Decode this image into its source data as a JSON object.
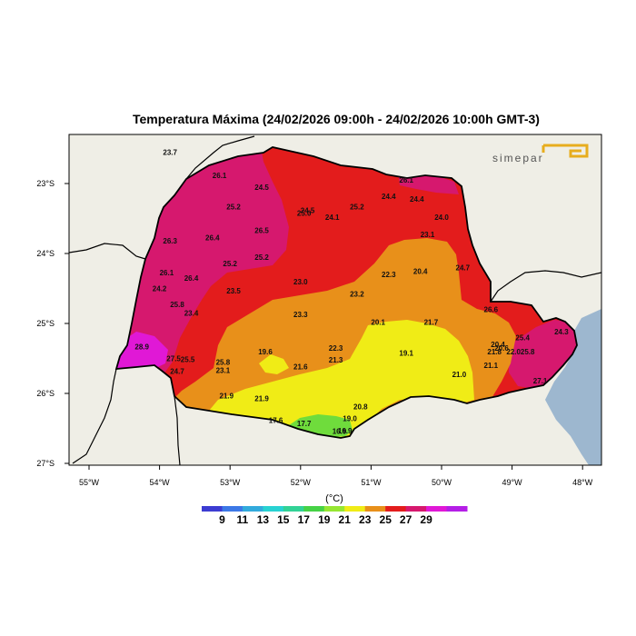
{
  "title": "Temperatura Máxima (24/02/2026 09:00h - 24/02/2026 10:00h GMT-3)",
  "logo": {
    "text": "simepar"
  },
  "colors": {
    "land": "#efeee6",
    "ocean": "#9db7cf",
    "level_21": "#f0ec16",
    "level_23": "#e8901a",
    "level_25": "#e31c1c",
    "level_27": "#d6186e",
    "level_29": "#e018d6",
    "level_19": "#6fdc3c"
  },
  "axes": {
    "x_ticks": [
      "55°W",
      "54°W",
      "53°W",
      "52°W",
      "51°W",
      "50°W",
      "49°W",
      "48°W"
    ],
    "y_ticks": [
      "23°S",
      "24°S",
      "25°S",
      "26°S",
      "27°S"
    ]
  },
  "legend": {
    "unit": "(°C)",
    "labels": [
      "9",
      "11",
      "13",
      "15",
      "17",
      "19",
      "21",
      "23",
      "25",
      "27",
      "29"
    ],
    "colors": [
      "#3c3cd2",
      "#3c78e6",
      "#32aadc",
      "#28d2d2",
      "#32d296",
      "#46d246",
      "#96e632",
      "#f0ec16",
      "#e8901a",
      "#e31c1c",
      "#d6186e",
      "#e018d6",
      "#b41ee6"
    ]
  },
  "stations": [
    {
      "v": "23.7",
      "x": -53.85,
      "y": -22.55
    },
    {
      "v": "26.1",
      "x": -53.15,
      "y": -22.88
    },
    {
      "v": "24.5",
      "x": -52.55,
      "y": -23.05
    },
    {
      "v": "25.2",
      "x": -52.95,
      "y": -23.33
    },
    {
      "v": "24.5",
      "x": -51.9,
      "y": -23.38
    },
    {
      "v": "25.0",
      "x": -51.95,
      "y": -23.42
    },
    {
      "v": "24.1",
      "x": -51.55,
      "y": -23.48
    },
    {
      "v": "25.2",
      "x": -51.2,
      "y": -23.33
    },
    {
      "v": "24.4",
      "x": -50.75,
      "y": -23.18
    },
    {
      "v": "26.1",
      "x": -50.5,
      "y": -22.95
    },
    {
      "v": "24.4",
      "x": -50.35,
      "y": -23.22
    },
    {
      "v": "24.0",
      "x": -50.0,
      "y": -23.48
    },
    {
      "v": "26.3",
      "x": -53.85,
      "y": -23.82
    },
    {
      "v": "26.4",
      "x": -53.25,
      "y": -23.77
    },
    {
      "v": "26.5",
      "x": -52.55,
      "y": -23.67
    },
    {
      "v": "23.1",
      "x": -50.2,
      "y": -23.73
    },
    {
      "v": "25.2",
      "x": -52.55,
      "y": -24.05
    },
    {
      "v": "25.2",
      "x": -53.0,
      "y": -24.14
    },
    {
      "v": "26.1",
      "x": -53.9,
      "y": -24.27
    },
    {
      "v": "26.4",
      "x": -53.55,
      "y": -24.35
    },
    {
      "v": "22.3",
      "x": -50.75,
      "y": -24.3
    },
    {
      "v": "20.4",
      "x": -50.3,
      "y": -24.25
    },
    {
      "v": "24.7",
      "x": -49.7,
      "y": -24.2
    },
    {
      "v": "24.2",
      "x": -54.0,
      "y": -24.5
    },
    {
      "v": "23.5",
      "x": -52.95,
      "y": -24.53
    },
    {
      "v": "23.0",
      "x": -52.0,
      "y": -24.4
    },
    {
      "v": "23.2",
      "x": -51.2,
      "y": -24.58
    },
    {
      "v": "25.8",
      "x": -53.75,
      "y": -24.73
    },
    {
      "v": "23.4",
      "x": -53.55,
      "y": -24.85
    },
    {
      "v": "23.3",
      "x": -52.0,
      "y": -24.87
    },
    {
      "v": "26.6",
      "x": -49.3,
      "y": -24.8
    },
    {
      "v": "20.1",
      "x": -50.9,
      "y": -24.98
    },
    {
      "v": "21.7",
      "x": -50.15,
      "y": -24.98
    },
    {
      "v": "28.9",
      "x": -54.25,
      "y": -25.33
    },
    {
      "v": "27.5",
      "x": -53.8,
      "y": -25.5
    },
    {
      "v": "25.5",
      "x": -53.6,
      "y": -25.51
    },
    {
      "v": "25.8",
      "x": -53.1,
      "y": -25.55
    },
    {
      "v": "19.6",
      "x": -52.5,
      "y": -25.4
    },
    {
      "v": "22.3",
      "x": -51.5,
      "y": -25.35
    },
    {
      "v": "21.3",
      "x": -51.5,
      "y": -25.52
    },
    {
      "v": "19.1",
      "x": -50.5,
      "y": -25.42
    },
    {
      "v": "20.4",
      "x": -49.2,
      "y": -25.3
    },
    {
      "v": "21.8",
      "x": -49.25,
      "y": -25.4
    },
    {
      "v": "20.6",
      "x": -49.15,
      "y": -25.35
    },
    {
      "v": "22.0",
      "x": -48.98,
      "y": -25.4
    },
    {
      "v": "25.8",
      "x": -48.78,
      "y": -25.4
    },
    {
      "v": "25.4",
      "x": -48.85,
      "y": -25.2
    },
    {
      "v": "24.3",
      "x": -48.3,
      "y": -25.12
    },
    {
      "v": "24.7",
      "x": -53.75,
      "y": -25.68
    },
    {
      "v": "23.1",
      "x": -53.1,
      "y": -25.67
    },
    {
      "v": "21.6",
      "x": -52.0,
      "y": -25.62
    },
    {
      "v": "21.1",
      "x": -49.3,
      "y": -25.6
    },
    {
      "v": "21.0",
      "x": -49.75,
      "y": -25.73
    },
    {
      "v": "27.1",
      "x": -48.6,
      "y": -25.82
    },
    {
      "v": "21.9",
      "x": -53.05,
      "y": -26.03
    },
    {
      "v": "21.9",
      "x": -52.55,
      "y": -26.07
    },
    {
      "v": "20.8",
      "x": -51.15,
      "y": -26.19
    },
    {
      "v": "17.6",
      "x": -52.35,
      "y": -26.38
    },
    {
      "v": "17.7",
      "x": -51.95,
      "y": -26.43
    },
    {
      "v": "19.0",
      "x": -51.3,
      "y": -26.36
    },
    {
      "v": "16.9",
      "x": -51.45,
      "y": -26.54
    },
    {
      "v": "16.9",
      "x": -51.37,
      "y": -26.53
    }
  ]
}
